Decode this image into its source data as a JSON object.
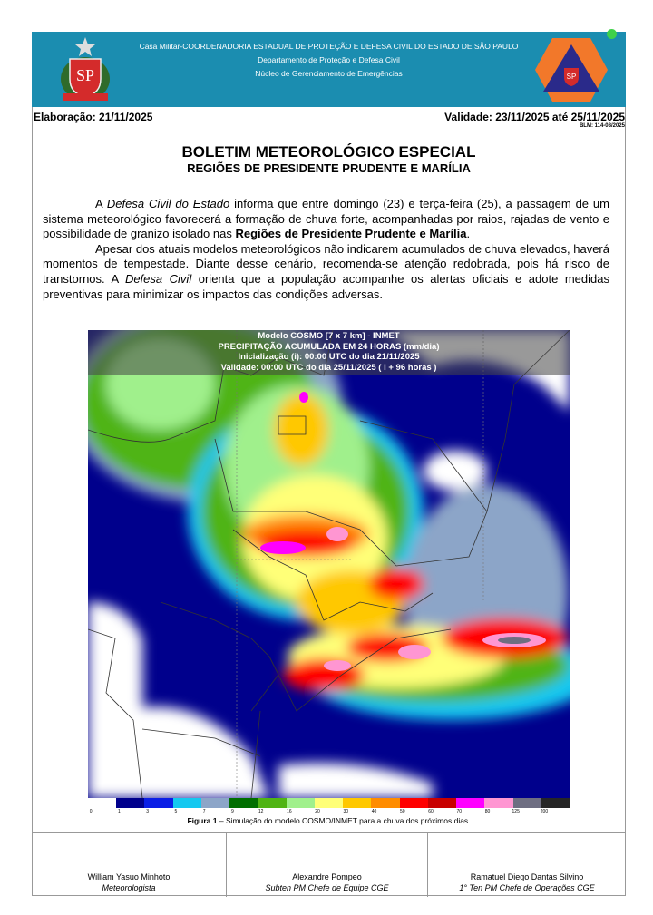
{
  "header": {
    "line1": "Casa Militar-COORDENADORIA ESTADUAL DE PROTEÇÃO E DEFESA CIVIL DO ESTADO DE SÃO PAULO",
    "line2": "Departamento de Proteção e Defesa Civil",
    "line3": "Núcleo de Gerenciamento de Emergências",
    "logo_left_text": "SP",
    "logo_right_text": "SP"
  },
  "meta": {
    "elaboracao": "Elaboração: 21/11/2025",
    "validade": "Validade: 23/11/2025 até 25/11/2025",
    "blm": "BLM: 114-08/2025"
  },
  "title": "BOLETIM METEOROLÓGICO ESPECIAL",
  "subtitle": "REGIÕES DE PRESIDENTE PRUDENTE E MARÍLIA",
  "paragraph1": {
    "a": "A ",
    "b": "Defesa Civil do Estado",
    "c": " informa que entre domingo (23) e terça-feira (25), a passagem de um sistema meteorológico favorecerá a formação de chuva forte, acompanhadas por raios, rajadas de vento e possibilidade de granizo isolado nas ",
    "d": "Regiões de Presidente Prudente e Marília",
    "e": "."
  },
  "paragraph2": {
    "a": "Apesar dos atuais modelos meteorológicos não indicarem acumulados de chuva elevados, haverá momentos de tempestade. Diante desse cenário, recomenda-se atenção redobrada, pois há risco de transtornos. A ",
    "b": "Defesa Civil",
    "c": " orienta que a população acompanhe os alertas oficiais e adote medidas preventivas para minimizar os impactos das condições adversas."
  },
  "map": {
    "line1": "Modelo COSMO [7 x 7 km] - INMET",
    "line2": "PRECIPITAÇÃO ACUMULADA EM 24 HORAS (mm/dia)",
    "line3": "Inicialização (i): 00:00 UTC do dia 21/11/2025",
    "line4": "Validade: 00:00 UTC do dia 25/11/2025 ( i + 96 horas )",
    "legend_labels": [
      "0",
      "1",
      "3",
      "5",
      "7",
      "9",
      "12",
      "16",
      "20",
      "30",
      "40",
      "50",
      "60",
      "70",
      "80",
      "125",
      "200"
    ],
    "legend_colors": [
      "#ffffff",
      "#00008c",
      "#0a1ee6",
      "#14c8f0",
      "#8ca5c8",
      "#006e00",
      "#50b414",
      "#a0f08c",
      "#ffff78",
      "#ffc800",
      "#ff8c00",
      "#ff0000",
      "#c80000",
      "#ff00ff",
      "#ff96d2",
      "#6e6e82",
      "#262626"
    ]
  },
  "caption": {
    "bold": "Figura 1",
    "text": " – Simulação do modelo COSMO/INMET para a chuva dos próximos dias."
  },
  "signatures": [
    {
      "name": "William Yasuo Minhoto",
      "role": "Meteorologista"
    },
    {
      "name": "Alexandre Pompeo",
      "role": "Subten PM Chefe de Equipe CGE"
    },
    {
      "name": "Ramatuel Diego Dantas Silvino",
      "role": "1° Ten PM Chefe de Operações CGE"
    }
  ],
  "colors": {
    "header_bg": "#1b8db0",
    "logo_orange": "#f2782a",
    "logo_navy": "#2a2a8a"
  }
}
